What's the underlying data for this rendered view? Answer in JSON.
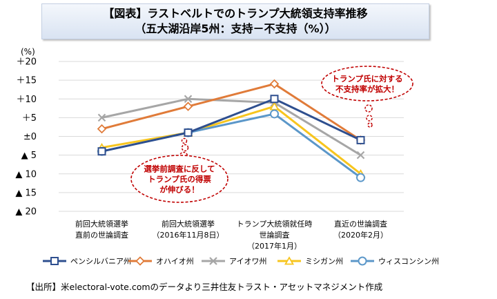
{
  "header": {
    "title_line1": "【図表】ラストベルトでのトランプ大統領支持率推移",
    "title_line2": "（五大湖沿岸5州：支持－不支持（%））"
  },
  "source": "【出所】米electoral-vote.comのデータより三井住友トラスト・アセットマネジメント作成",
  "chart_data": {
    "type": "line",
    "unit_label": "(%)",
    "categories": [
      [
        "前回大統領選挙",
        "直前の世論調査"
      ],
      [
        "前回大統領選挙",
        "（2016年11月8日）"
      ],
      [
        "トランプ大統領就任時",
        "世論調査",
        "（2017年1月）"
      ],
      [
        "直近の世論調査",
        "（2020年2月）"
      ]
    ],
    "ylim": [
      -20,
      20
    ],
    "yticks": [
      {
        "value": 20,
        "label": "＋20"
      },
      {
        "value": 15,
        "label": "＋15"
      },
      {
        "value": 10,
        "label": "＋10"
      },
      {
        "value": 5,
        "label": "＋5"
      },
      {
        "value": 0,
        "label": "±0"
      },
      {
        "value": -5,
        "label": "▲ 5"
      },
      {
        "value": -10,
        "label": "▲ 10"
      },
      {
        "value": -15,
        "label": "▲ 15"
      },
      {
        "value": -20,
        "label": "▲ 20"
      }
    ],
    "grid": true,
    "legend_position": "bottom",
    "series": [
      {
        "name": "ペンシルバニア州",
        "color": "#2e4f8f",
        "marker": "square",
        "values": [
          -4,
          1,
          10,
          -1
        ]
      },
      {
        "name": "オハイオ州",
        "color": "#e07b39",
        "marker": "diamond",
        "values": [
          2,
          8,
          14,
          -1
        ]
      },
      {
        "name": "アイオワ州",
        "color": "#a6a6a6",
        "marker": "cross",
        "values": [
          5,
          10,
          9,
          -5
        ]
      },
      {
        "name": "ミシガン州",
        "color": "#f7c51e",
        "marker": "triangle",
        "values": [
          -3,
          1,
          8,
          -10
        ]
      },
      {
        "name": "ウィスコンシン州",
        "color": "#5b97c9",
        "marker": "circle",
        "values": [
          -4,
          1,
          6,
          -11
        ]
      }
    ],
    "annotations": [
      {
        "text": [
          "選挙前調査に反して",
          "トランプ氏の得票",
          "が伸びる！"
        ],
        "color": "#c00000"
      },
      {
        "text": [
          "トランプ氏に対する",
          "不支持率が拡大！"
        ],
        "color": "#c00000"
      }
    ]
  }
}
